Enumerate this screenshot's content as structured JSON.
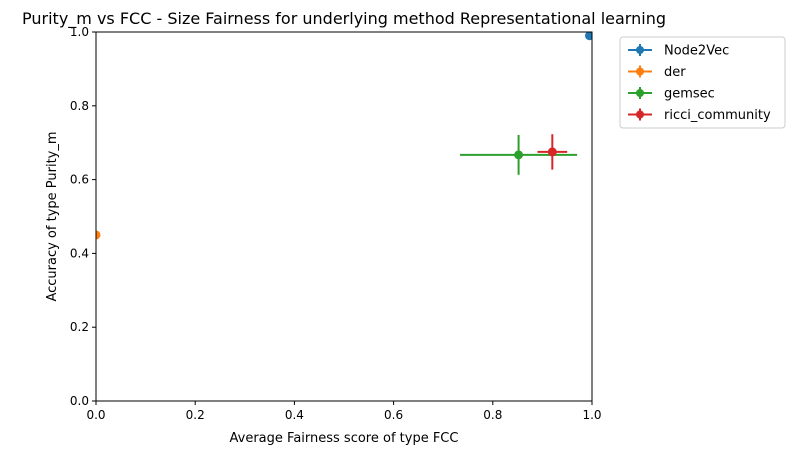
{
  "chart_data": {
    "type": "scatter",
    "title": "Purity_m vs FCC - Size Fairness for underlying method Representational learning",
    "xlabel": "Average Fairness score of type FCC",
    "ylabel": "Accuracy of type Purity_m",
    "xlim": [
      0.0,
      1.0
    ],
    "ylim": [
      0.0,
      1.0
    ],
    "xticks": [
      "0.0",
      "0.2",
      "0.4",
      "0.6",
      "0.8",
      "1.0"
    ],
    "yticks": [
      "0.0",
      "0.2",
      "0.4",
      "0.6",
      "0.8",
      "1.0"
    ],
    "grid": false,
    "legend_position": "outside-upper-right",
    "series": [
      {
        "name": "Node2Vec",
        "color": "#1f77b4",
        "x": 0.995,
        "y": 0.99,
        "xerr": 0.0,
        "yerr": 0.0
      },
      {
        "name": "der",
        "color": "#ff7f0e",
        "x": 0.0,
        "y": 0.45,
        "xerr": 0.0,
        "yerr": 0.0
      },
      {
        "name": "gemsec",
        "color": "#2ca02c",
        "x": 0.852,
        "y": 0.667,
        "xerr": 0.118,
        "yerr": 0.054
      },
      {
        "name": "ricci_community",
        "color": "#d62728",
        "x": 0.92,
        "y": 0.675,
        "xerr": 0.03,
        "yerr": 0.048
      }
    ]
  }
}
